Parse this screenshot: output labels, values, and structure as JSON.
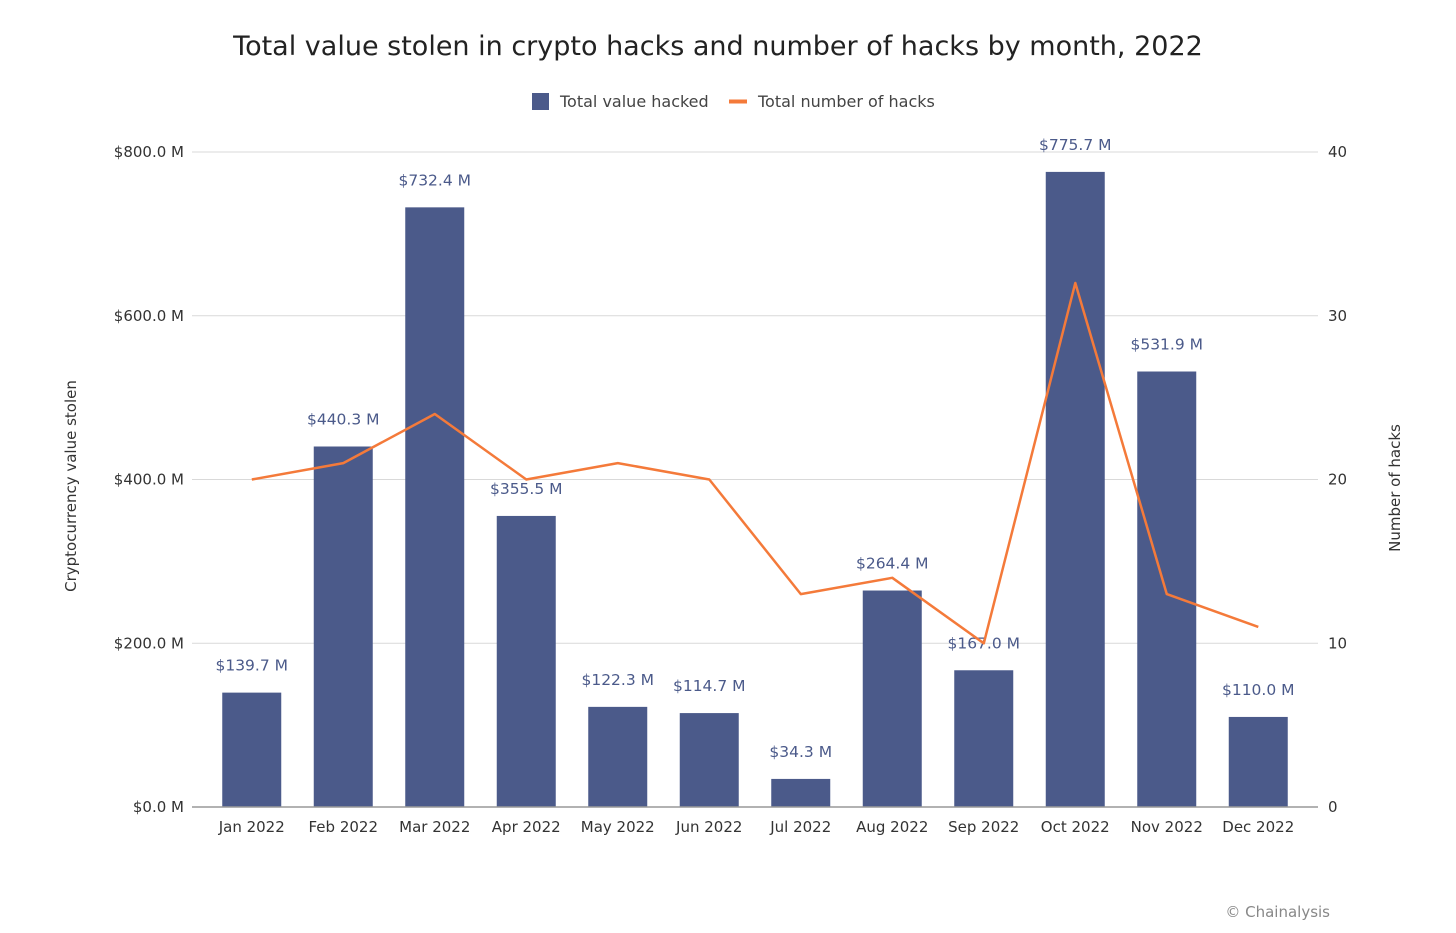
{
  "chart_data": {
    "type": "bar",
    "title": "Total value stolen in crypto hacks and number of hacks by month, 2022",
    "categories": [
      "Jan 2022",
      "Feb 2022",
      "Mar 2022",
      "Apr 2022",
      "May 2022",
      "Jun 2022",
      "Jul 2022",
      "Aug 2022",
      "Sep 2022",
      "Oct 2022",
      "Nov 2022",
      "Dec 2022"
    ],
    "series": [
      {
        "name": "Total value hacked",
        "type": "bar",
        "axis": "left",
        "color": "#4b5a8a",
        "values": [
          139.7,
          440.3,
          732.4,
          355.5,
          122.3,
          114.7,
          34.3,
          264.4,
          167.0,
          775.7,
          531.9,
          110.0
        ],
        "labels": [
          "$139.7 M",
          "$440.3 M",
          "$732.4 M",
          "$355.5 M",
          "$122.3 M",
          "$114.7 M",
          "$34.3 M",
          "$264.4 M",
          "$167.0 M",
          "$775.7 M",
          "$531.9 M",
          "$110.0 M"
        ]
      },
      {
        "name": "Total number of hacks",
        "type": "line",
        "axis": "right",
        "color": "#f47a3a",
        "values": [
          20,
          21,
          24,
          20,
          21,
          20,
          13,
          14,
          10,
          32,
          13,
          11
        ]
      }
    ],
    "ylabel": "Cryptocurrency value stolen",
    "ylim": [
      0,
      800
    ],
    "yticks": [
      "$0.0 M",
      "$200.0 M",
      "$400.0 M",
      "$600.0 M",
      "$800.0 M"
    ],
    "y2label": "Number of hacks",
    "y2lim": [
      0,
      40
    ],
    "y2ticks": [
      "0",
      "10",
      "20",
      "30",
      "40"
    ],
    "grid": true,
    "legend_position": "top-center"
  },
  "credit": "© Chainalysis"
}
